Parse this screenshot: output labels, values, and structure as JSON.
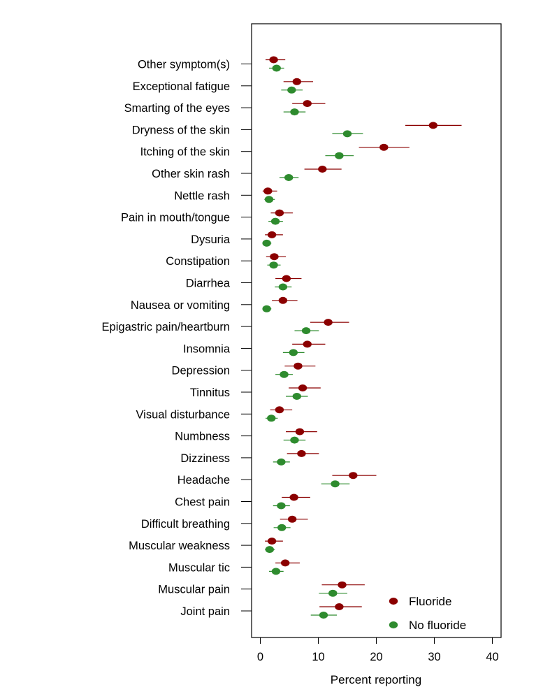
{
  "chart_data": {
    "type": "scatter",
    "subtype": "dot-plot with error bars",
    "xlabel": "Percent reporting",
    "xlim": [
      0,
      40
    ],
    "xticks": [
      0,
      10,
      20,
      30,
      40
    ],
    "legend_position": "bottom-right",
    "colors": {
      "Fluoride": "#8b0000",
      "No fluoride": "#2e8b2e"
    },
    "categories": [
      "Other symptom(s)",
      "Exceptional fatigue",
      "Smarting of the eyes",
      "Dryness of the skin",
      "Itching of the skin",
      "Other skin rash",
      "Nettle rash",
      "Pain in mouth/tongue",
      "Dysuria",
      "Constipation",
      "Diarrhea",
      "Nausea or vomiting",
      "Epigastric pain/heartburn",
      "Insomnia",
      "Depression",
      "Tinnitus",
      "Visual disturbance",
      "Numbness",
      "Dizziness",
      "Headache",
      "Chest pain",
      "Difficult breathing",
      "Muscular weakness",
      "Muscular tic",
      "Muscular pain",
      "Joint pain"
    ],
    "series": [
      {
        "name": "Fluoride",
        "values": [
          2.3,
          6.3,
          8.1,
          29.8,
          21.3,
          10.7,
          1.3,
          3.3,
          2.0,
          2.4,
          4.5,
          3.9,
          11.7,
          8.1,
          6.5,
          7.3,
          3.3,
          6.8,
          7.1,
          16.0,
          5.8,
          5.5,
          2.0,
          4.3,
          14.1,
          13.6
        ],
        "lower": [
          0.9,
          4.0,
          5.5,
          25.0,
          17.0,
          7.6,
          0.4,
          1.8,
          0.8,
          1.0,
          2.6,
          2.0,
          8.6,
          5.5,
          4.2,
          4.9,
          1.7,
          4.4,
          4.6,
          12.4,
          3.7,
          3.4,
          0.8,
          2.6,
          10.6,
          10.2
        ],
        "upper": [
          4.3,
          9.1,
          11.2,
          34.7,
          25.7,
          14.0,
          2.9,
          5.6,
          3.9,
          4.4,
          7.1,
          6.4,
          15.3,
          11.2,
          9.5,
          10.4,
          5.5,
          9.8,
          10.1,
          20.0,
          8.6,
          8.2,
          3.9,
          6.8,
          18.0,
          17.5
        ]
      },
      {
        "name": "No fluoride",
        "values": [
          2.8,
          5.4,
          5.9,
          15.0,
          13.6,
          4.9,
          1.5,
          2.6,
          1.1,
          2.3,
          3.9,
          1.1,
          7.9,
          5.7,
          4.1,
          6.3,
          1.9,
          5.9,
          3.6,
          12.9,
          3.6,
          3.7,
          1.6,
          2.7,
          12.5,
          10.9
        ],
        "lower": [
          1.5,
          3.6,
          4.0,
          12.4,
          11.2,
          3.3,
          0.7,
          1.4,
          0.5,
          1.2,
          2.5,
          0.5,
          5.9,
          3.9,
          2.6,
          4.4,
          0.9,
          4.0,
          2.2,
          10.5,
          2.2,
          2.3,
          0.8,
          1.5,
          10.1,
          8.7
        ],
        "upper": [
          4.1,
          7.3,
          7.8,
          17.7,
          16.1,
          6.6,
          2.5,
          3.9,
          1.9,
          3.5,
          5.4,
          1.9,
          10.1,
          7.6,
          5.6,
          8.2,
          3.0,
          7.8,
          5.1,
          15.4,
          5.1,
          5.2,
          2.5,
          4.0,
          15.0,
          13.2
        ]
      }
    ]
  }
}
